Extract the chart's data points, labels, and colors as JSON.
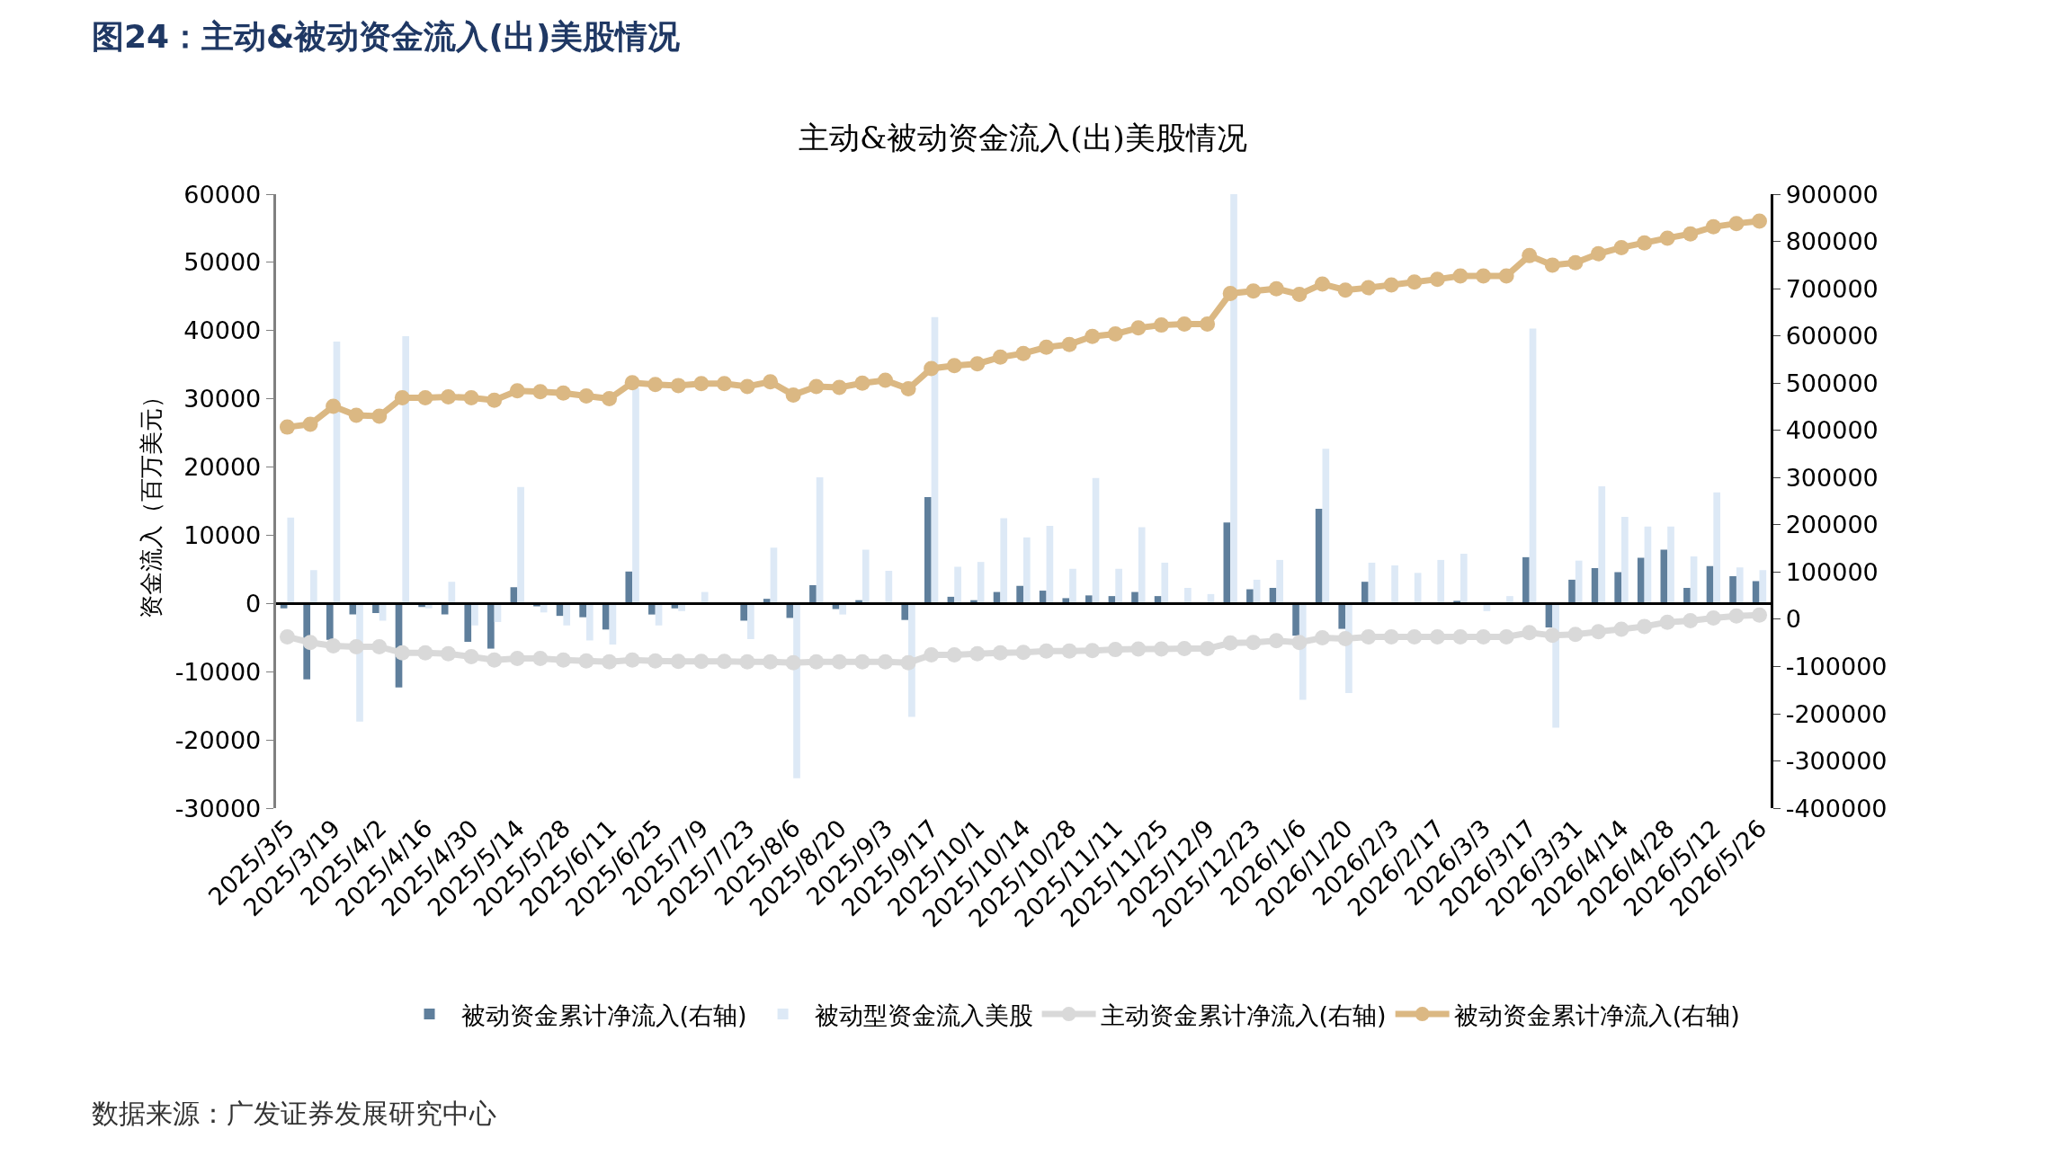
{
  "chart_data": {
    "type": "bar",
    "title": "图24：主动&被动资金流入(出)美股情况",
    "subtitle": "主动&被动资金流入(出)美股情况",
    "ylabel": "资金流入（百万美元）",
    "categories": [
      "2025/3/5",
      null,
      "2025/3/19",
      null,
      "2025/4/2",
      null,
      "2025/4/16",
      null,
      "2025/4/30",
      null,
      "2025/5/14",
      null,
      "2025/5/28",
      null,
      "2025/6/11",
      null,
      "2025/6/25",
      null,
      "2025/7/9",
      null,
      "2025/7/23",
      null,
      "2025/8/6",
      null,
      "2025/8/20",
      null,
      "2025/9/3",
      null,
      "2025/9/17",
      null,
      "2025/10/1",
      null,
      "2025/10/14",
      null,
      "2025/10/28",
      null,
      "2025/11/11",
      null,
      "2025/11/25",
      null,
      "2025/12/9",
      null,
      "2025/12/23",
      null,
      "2026/1/6",
      null,
      "2026/1/20",
      null,
      "2026/2/3",
      null,
      "2026/2/17",
      null,
      "2026/3/3",
      null,
      "2026/3/17",
      null,
      "2026/3/31",
      null,
      "2026/4/14",
      null,
      "2026/4/28",
      null,
      "2026/5/12",
      null,
      "2026/5/26"
    ],
    "series": [
      {
        "name": "被动资金累计净流入(右轴)",
        "color": "#5f7f9c",
        "values": [
          -700,
          -11100,
          -5300,
          -1600,
          -1400,
          -12300,
          -500,
          -1600,
          -5600,
          -6600,
          2400,
          -400,
          -1800,
          -2000,
          -3800,
          4700,
          -1600,
          -700,
          null,
          null,
          -2500,
          700,
          -2100,
          2700,
          -800,
          500,
          null,
          -2400,
          15600,
          1000,
          500,
          1700,
          2600,
          1900,
          800,
          1200,
          1100,
          1700,
          1100,
          null,
          null,
          11900,
          2100,
          2300,
          -4700,
          13900,
          -3700,
          3200,
          null,
          null,
          null,
          400,
          null,
          null,
          6800,
          -3500,
          3500,
          5200,
          4600,
          6700,
          7900,
          2300,
          5500,
          4000,
          3300
        ]
      },
      {
        "name": "被动型资金流入美股",
        "color": "#dde9f6",
        "values": [
          12600,
          4900,
          38400,
          -17300,
          -2500,
          39200,
          -700,
          3200,
          -3200,
          -2700,
          17100,
          -1300,
          -3200,
          -5400,
          -6000,
          31600,
          -3200,
          -1100,
          1700,
          null,
          -5200,
          8200,
          -25600,
          18500,
          -1600,
          7900,
          4800,
          -16600,
          42000,
          5400,
          6100,
          12500,
          9700,
          11400,
          5100,
          18400,
          5100,
          11200,
          6000,
          2300,
          1400,
          60000,
          3500,
          6400,
          -14100,
          22700,
          -13100,
          6000,
          5600,
          4500,
          6400,
          7300,
          -1100,
          1100,
          40300,
          -18200,
          6300,
          17200,
          12700,
          11300,
          11300,
          6900,
          16300,
          5300,
          4900
        ]
      },
      {
        "name": "主动资金累计净流入(右轴)",
        "type": "line",
        "axis": "y2",
        "color": "#d9d9d9",
        "values": [
          -37000,
          -49000,
          -56000,
          -58000,
          -58000,
          -71000,
          -71000,
          -73000,
          -79000,
          -86000,
          -83000,
          -83000,
          -86000,
          -88000,
          -90000,
          -86000,
          -88000,
          -89000,
          -89000,
          -89000,
          -90000,
          -90000,
          -92000,
          -90000,
          -90000,
          -90000,
          -90000,
          -92000,
          -75000,
          -75000,
          -73000,
          -71000,
          -70000,
          -67000,
          -67000,
          -66000,
          -64000,
          -63000,
          -63000,
          -62000,
          -62000,
          -50000,
          -49000,
          -45000,
          -49000,
          -39000,
          -41000,
          -37000,
          -37000,
          -37000,
          -37000,
          -37000,
          -37000,
          -37000,
          -28000,
          -34000,
          -32000,
          -26000,
          -21000,
          -15000,
          -6000,
          -3000,
          3000,
          7000,
          9000
        ]
      },
      {
        "name": "被动资金累计净流入(右轴)",
        "type": "line",
        "axis": "y2",
        "color": "#dbb883",
        "values": [
          407000,
          413000,
          451000,
          432000,
          430000,
          469000,
          469000,
          471000,
          469000,
          464000,
          484000,
          482000,
          479000,
          473000,
          467000,
          501000,
          497000,
          495000,
          499000,
          499000,
          493000,
          503000,
          475000,
          493000,
          491000,
          500000,
          506000,
          488000,
          531000,
          537000,
          541000,
          555000,
          563000,
          576000,
          582000,
          599000,
          604000,
          617000,
          623000,
          625000,
          625000,
          690000,
          695000,
          700000,
          688000,
          710000,
          697000,
          702000,
          708000,
          714000,
          720000,
          727000,
          727000,
          727000,
          770000,
          750000,
          755000,
          774000,
          787000,
          797000,
          807000,
          816000,
          831000,
          838000,
          843000
        ]
      }
    ],
    "ylim": [
      -30000,
      60000
    ],
    "yticks": [
      -30000,
      -20000,
      -10000,
      0,
      10000,
      20000,
      30000,
      40000,
      50000,
      60000
    ],
    "y2lim": [
      -400000,
      900000
    ],
    "y2ticks": [
      -400000,
      -300000,
      -200000,
      -100000,
      0,
      100000,
      200000,
      300000,
      400000,
      500000,
      600000,
      700000,
      800000,
      900000
    ],
    "annotations": [
      "数据来源：广发证券发展研究中心"
    ],
    "legend": "bottom",
    "marker": "circle",
    "line_style": "solid"
  }
}
